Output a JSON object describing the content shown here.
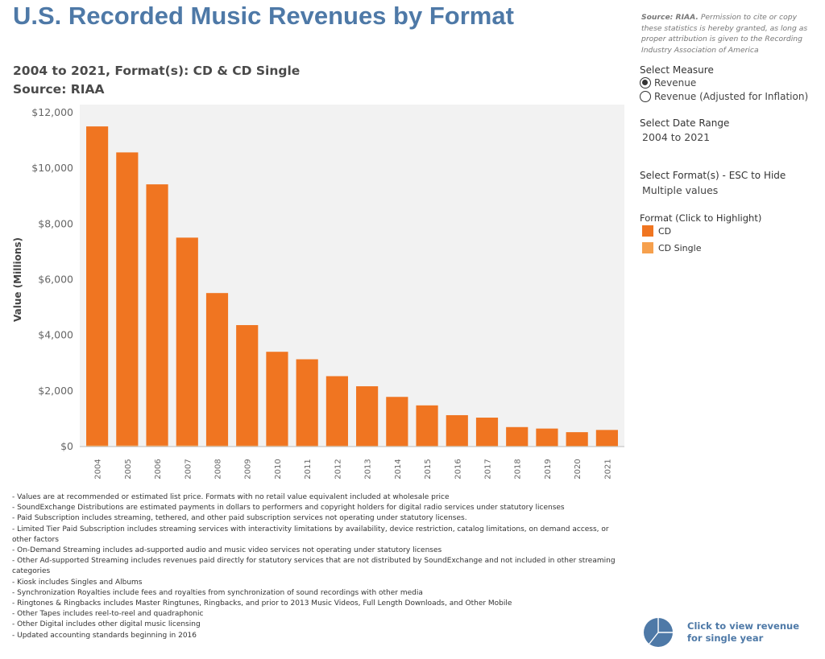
{
  "header": {
    "title": "U.S. Recorded Music Revenues by Format",
    "subtitle_line1": "2004 to 2021, Format(s): CD & CD Single",
    "subtitle_line2": "Source: RIAA"
  },
  "source_note": {
    "bold": "Source: RIAA.",
    "text": " Permission to cite or copy these statistics is hereby granted, as long as proper attribution is given to the Recording Industry Association of America"
  },
  "controls": {
    "measure_label": "Select Measure",
    "measure_options": [
      "Revenue",
      "Revenue (Adjusted for Inflation)"
    ],
    "measure_selected": "Revenue",
    "date_range_label": "Select Date Range",
    "date_range_value": "2004 to 2021",
    "format_label": "Select Format(s) - ESC to Hide",
    "format_value": "Multiple values",
    "legend_label": "Format (Click to Highlight)",
    "legend_items": [
      {
        "name": "CD",
        "color": "#f07521"
      },
      {
        "name": "CD Single",
        "color": "#f6a04d"
      }
    ]
  },
  "chart_data": {
    "type": "bar",
    "title": "",
    "xlabel": "",
    "ylabel": "Value (Millions)",
    "ylim": [
      0,
      12000
    ],
    "yticks": [
      "$0",
      "$2,000",
      "$4,000",
      "$6,000",
      "$8,000",
      "$10,000",
      "$12,000"
    ],
    "grid": false,
    "background": "#f2f2f2",
    "categories": [
      "2004",
      "2005",
      "2006",
      "2007",
      "2008",
      "2009",
      "2010",
      "2011",
      "2012",
      "2013",
      "2014",
      "2015",
      "2016",
      "2017",
      "2018",
      "2019",
      "2020",
      "2021"
    ],
    "series": [
      {
        "name": "CD",
        "color": "#f07521",
        "values": [
          11447,
          10520,
          9373,
          7453,
          5471,
          4319,
          3360,
          3092,
          2485,
          2123,
          1741,
          1436,
          1084,
          996,
          657,
          604,
          474,
          554
        ]
      },
      {
        "name": "CD Single",
        "color": "#f6a04d",
        "values": [
          15,
          8,
          7,
          12,
          3,
          3,
          3,
          2,
          2,
          1,
          1,
          1,
          1,
          1,
          0,
          0,
          0,
          0
        ]
      }
    ]
  },
  "notes": [
    "- Values are at recommended or estimated list price. Formats with no retail value equivalent included at wholesale price",
    "- SoundExchange Distributions are estimated payments in dollars to performers and copyright holders for digital radio services under statutory licenses",
    "- Paid Subscription includes streaming, tethered, and other paid subscription services not operating under statutory licenses.",
    "- Limited Tier Paid Subscription includes streaming services with interactivity limitations by availability, device restriction, catalog limitations, on demand access, or other factors",
    "- On-Demand Streaming includes ad-supported audio and music video services not operating under statutory licenses",
    "- Other Ad-supported Streaming includes revenues paid directly for statutory services that are not distributed by SoundExchange and not included in other streaming categories",
    "- Kiosk includes Singles and Albums",
    "- Synchronization Royalties include fees and royalties from synchronization of sound recordings with other media",
    "- Ringtones & Ringbacks includes Master Ringtunes, Ringbacks, and prior to 2013 Music Videos, Full Length Downloads, and Other Mobile",
    "- Other Tapes includes reel-to-reel and quadraphonic",
    "- Other Digital includes other digital music licensing",
    "- Updated accounting standards beginning in 2016"
  ],
  "cta": {
    "text": "Click to view revenue for single year",
    "icon": "pie-chart-icon",
    "color": "#4e79a7"
  }
}
